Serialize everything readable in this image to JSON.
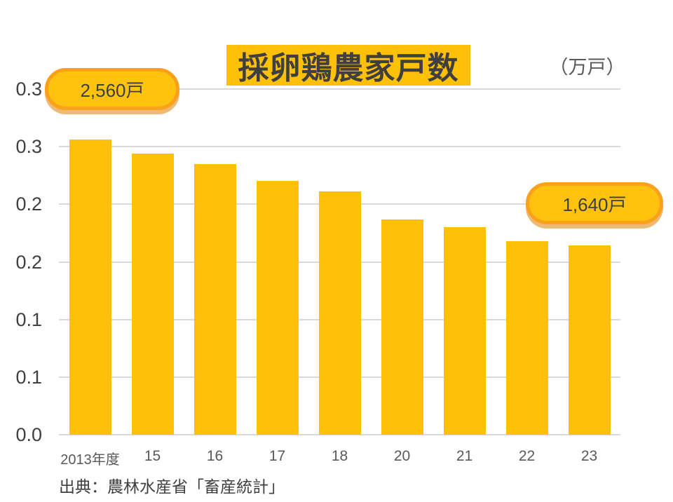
{
  "title": {
    "text": "採卵鶏農家戸数"
  },
  "unit_label": "（万戸）",
  "callouts": [
    {
      "text": "2,560戸"
    },
    {
      "text": "1,640戸"
    }
  ],
  "source": "出典：農林水産省「畜産統計」",
  "colors": {
    "bar": "#FFC008",
    "title_bg": "#FFC008",
    "gridline": "#D9D9D9",
    "callout_fill": "#FFC30F",
    "callout_border": "#F9A11B",
    "callout_shadow": "rgba(222,130,10,0.55)"
  },
  "chart_data": {
    "type": "bar",
    "title": "採卵鶏農家戸数",
    "axis_unit": "万戸",
    "value_unit": "戸",
    "categories": [
      "2013年度",
      "15",
      "16",
      "17",
      "18",
      "20",
      "21",
      "22",
      "23"
    ],
    "values": [
      2560,
      2440,
      2350,
      2200,
      2110,
      1870,
      1800,
      1680,
      1640
    ],
    "values_in_axis_units": [
      0.256,
      0.244,
      0.235,
      0.22,
      0.211,
      0.187,
      0.18,
      0.168,
      0.164
    ],
    "y_tick_labels_top_to_bottom": [
      "0.3",
      "0.3",
      "0.2",
      "0.2",
      "0.1",
      "0.1",
      "0.0"
    ],
    "y_max_axis_units": 0.3,
    "y_tick_step_axis_units": 0.05,
    "grid": true,
    "legend": "none",
    "annotations": [
      "2,560戸",
      "1,640戸"
    ],
    "xlabel": "",
    "ylabel": "（万戸）"
  }
}
